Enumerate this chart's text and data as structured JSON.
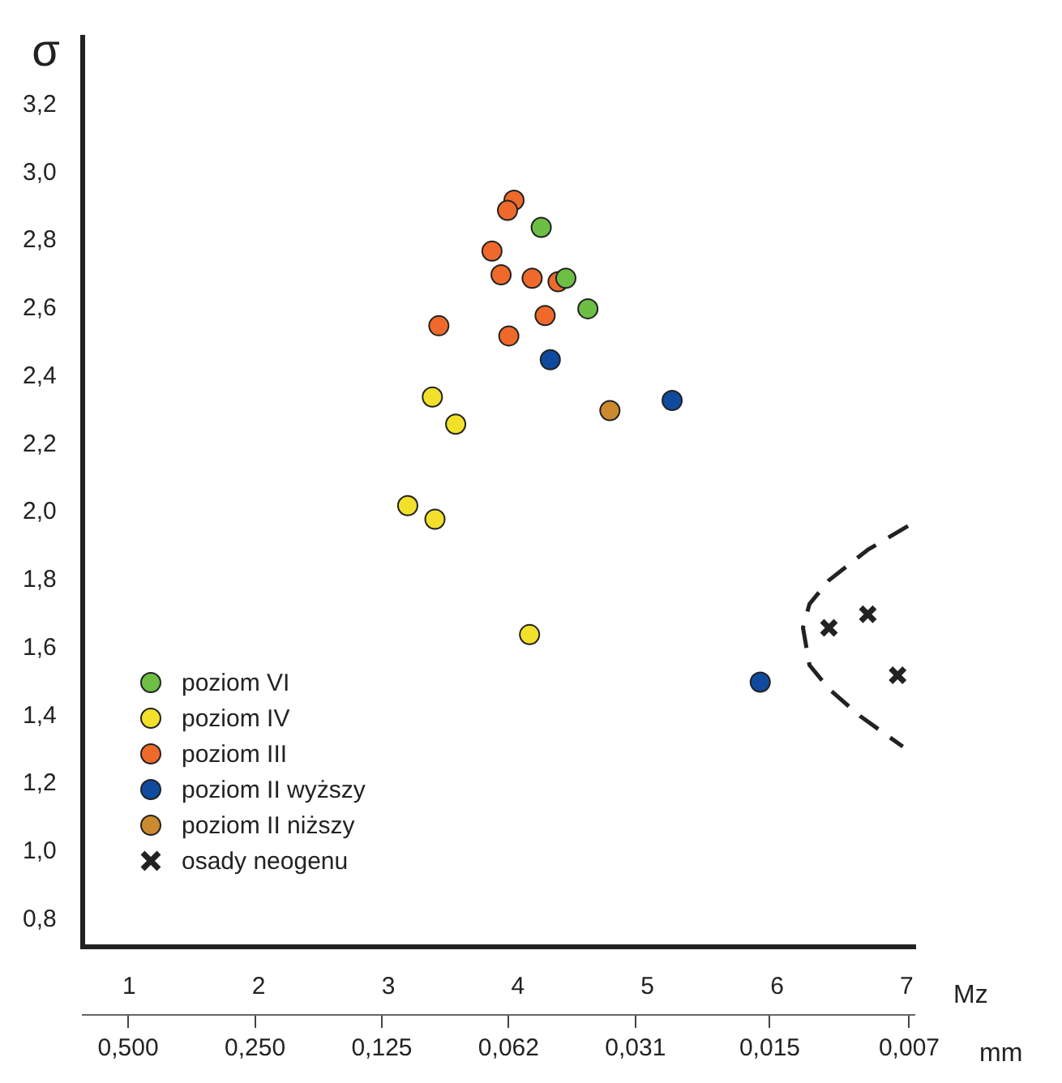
{
  "chart_data": {
    "type": "scatter",
    "ylabel": "σ",
    "xlabel": "Mz",
    "x2label": "mm",
    "xlim": [
      0.64,
      7.06
    ],
    "ylim": [
      0.72,
      3.4
    ],
    "xticks": [
      1,
      2,
      3,
      4,
      5,
      6,
      7
    ],
    "x2lim": [
      0.642,
      0.0068
    ],
    "log": "x2",
    "x2ticks": [
      {
        "value": 0.5,
        "label": "0,500"
      },
      {
        "value": 0.25,
        "label": "0,250"
      },
      {
        "value": 0.125,
        "label": "0,125"
      },
      {
        "value": 0.0625,
        "label": "0,062"
      },
      {
        "value": 0.03125,
        "label": "0,031"
      },
      {
        "value": 0.015,
        "label": "0,015"
      },
      {
        "value": 0.007,
        "label": "0,007"
      }
    ],
    "yticks": [
      {
        "value": 0.8,
        "label": "0,8"
      },
      {
        "value": 1.0,
        "label": "1,0"
      },
      {
        "value": 1.2,
        "label": "1,2"
      },
      {
        "value": 1.4,
        "label": "1,4"
      },
      {
        "value": 1.6,
        "label": "1,6"
      },
      {
        "value": 1.8,
        "label": "1,8"
      },
      {
        "value": 2.0,
        "label": "2,0"
      },
      {
        "value": 2.2,
        "label": "2,2"
      },
      {
        "value": 2.4,
        "label": "2,4"
      },
      {
        "value": 2.6,
        "label": "2,6"
      },
      {
        "value": 2.8,
        "label": "2,8"
      },
      {
        "value": 3.0,
        "label": "3,0"
      },
      {
        "value": 3.2,
        "label": "3,2"
      }
    ],
    "grid": false,
    "legend": "bottom left",
    "marker": "circle",
    "series": [
      {
        "name": "poziom VI",
        "color": "#6cbf44",
        "x": [
          4.18,
          4.37,
          4.54
        ],
        "values": [
          2.84,
          2.69,
          2.6
        ]
      },
      {
        "name": "poziom IV",
        "color": "#f2e02a",
        "x": [
          3.34,
          3.52,
          3.15,
          3.36,
          4.09
        ],
        "values": [
          2.34,
          2.26,
          2.02,
          1.98,
          1.64
        ]
      },
      {
        "name": "poziom III",
        "color": "#ef6a2a",
        "x": [
          3.97,
          3.92,
          3.8,
          3.87,
          4.11,
          4.31,
          3.39,
          4.21,
          3.93
        ],
        "values": [
          2.92,
          2.89,
          2.77,
          2.7,
          2.69,
          2.68,
          2.55,
          2.58,
          2.52
        ]
      },
      {
        "name": "poziom II wyższy",
        "color": "#0f4a9e",
        "x": [
          4.25,
          5.19,
          5.87
        ],
        "values": [
          2.45,
          2.33,
          1.5
        ]
      },
      {
        "name": "poziom II niższy",
        "color": "#cc8a2e",
        "x": [
          4.71
        ],
        "values": [
          2.3
        ]
      },
      {
        "name": "osady neogenu",
        "color": "#222222",
        "marker": "cross",
        "x": [
          6.4,
          6.7,
          6.93
        ],
        "values": [
          1.66,
          1.7,
          1.52
        ]
      },
      {
        "type": "line",
        "color": "#222222",
        "line_style": "dashed",
        "marker": "none",
        "x": [
          7.01,
          6.7,
          6.4,
          6.25,
          6.2,
          6.25,
          6.4,
          6.64,
          6.97
        ],
        "values": [
          1.96,
          1.89,
          1.8,
          1.73,
          1.66,
          1.55,
          1.48,
          1.4,
          1.31
        ]
      }
    ]
  }
}
